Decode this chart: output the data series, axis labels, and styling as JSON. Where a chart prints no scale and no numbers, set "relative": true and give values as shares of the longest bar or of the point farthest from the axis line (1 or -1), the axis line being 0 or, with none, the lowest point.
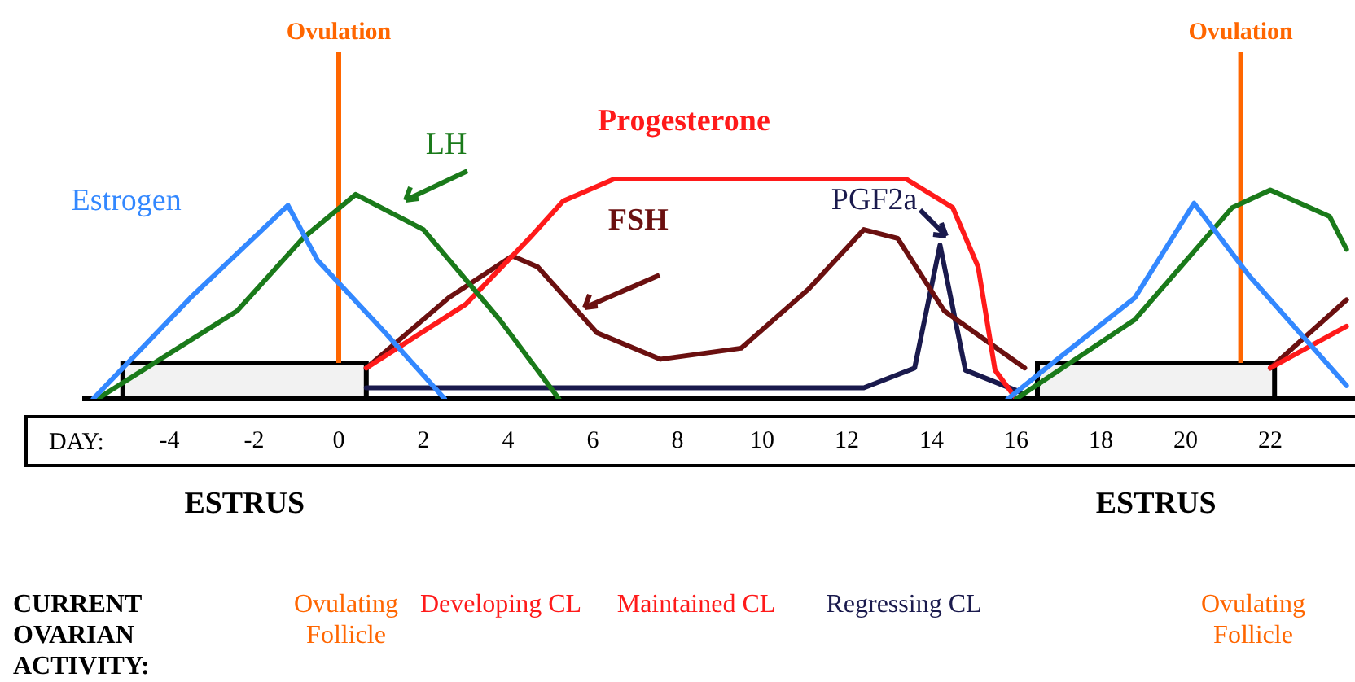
{
  "chart_data": {
    "type": "line",
    "relative": true,
    "xlabel": "DAY:",
    "xlim": [
      -6,
      24
    ],
    "xticks": [
      -4,
      -2,
      0,
      2,
      4,
      6,
      8,
      10,
      12,
      14,
      16,
      18,
      20,
      22
    ],
    "legend": false,
    "grid": false,
    "marker": "none",
    "line_style": "solid",
    "series": [
      {
        "name": "Estrogen",
        "color": "#3388ff",
        "x": [
          -5.8,
          -3.5,
          -1.2,
          -0.5,
          1.1,
          2.5,
          null,
          15.8,
          18.8,
          20.2,
          21.5,
          23.8
        ],
        "values": [
          0,
          0.46,
          0.88,
          0.63,
          0.3,
          0,
          null,
          0,
          0.46,
          0.89,
          0.56,
          0.06
        ]
      },
      {
        "name": "LH",
        "color": "#1a7a1a",
        "x": [
          -5.7,
          -2.4,
          -0.85,
          0.4,
          2.0,
          3.8,
          5.2,
          null,
          16.0,
          18.8,
          21.1,
          22.0,
          23.4,
          23.8
        ],
        "values": [
          0,
          0.4,
          0.73,
          0.93,
          0.77,
          0.36,
          0,
          null,
          0,
          0.36,
          0.87,
          0.95,
          0.83,
          0.68
        ]
      },
      {
        "name": "Progesterone",
        "color": "#ff1a1a",
        "x": [
          0.65,
          3.0,
          4.5,
          5.3,
          6.5,
          13.4,
          14.5,
          15.1,
          15.5,
          16.0,
          null,
          22.0,
          23.8
        ],
        "values": [
          0.14,
          0.43,
          0.73,
          0.9,
          1,
          1,
          0.87,
          0.6,
          0.13,
          0,
          null,
          0.14,
          0.33
        ]
      },
      {
        "name": "FSH",
        "color": "#6b1010",
        "x": [
          0.65,
          2.6,
          4.1,
          4.7,
          6.1,
          7.6,
          9.5,
          11.1,
          12.4,
          13.2,
          14.3,
          16.2,
          null,
          22.0,
          23.8
        ],
        "values": [
          0.14,
          0.46,
          0.65,
          0.6,
          0.3,
          0.18,
          0.23,
          0.5,
          0.77,
          0.73,
          0.4,
          0.14,
          null,
          0.14,
          0.45
        ]
      },
      {
        "name": "PGF2a",
        "color": "#1a1a4d",
        "x": [
          0.65,
          12.4,
          13.6,
          14.2,
          14.8,
          16.1
        ],
        "values": [
          0.05,
          0.05,
          0.14,
          0.7,
          0.13,
          0.03
        ]
      }
    ],
    "ref_lines": [
      {
        "axis": "x",
        "value": 0,
        "label": "Ovulation",
        "color": "#ff6600"
      },
      {
        "axis": "x",
        "value": 21.3,
        "label": "Ovulation",
        "color": "#ff6600"
      }
    ],
    "bands": [
      {
        "axis": "x",
        "from": -5.1,
        "to": 0.65,
        "label": "ESTRUS",
        "color": "#f2f2f2"
      },
      {
        "axis": "x",
        "from": 16.5,
        "to": 22.1,
        "label": "ESTRUS",
        "color": "#f2f2f2"
      }
    ],
    "annotations": [
      "CURRENT OVARIAN ACTIVITY:",
      "Ovulating Follicle",
      "Developing CL",
      "Maintained CL",
      "Regressing CL",
      "Ovulating Follicle"
    ]
  }
}
